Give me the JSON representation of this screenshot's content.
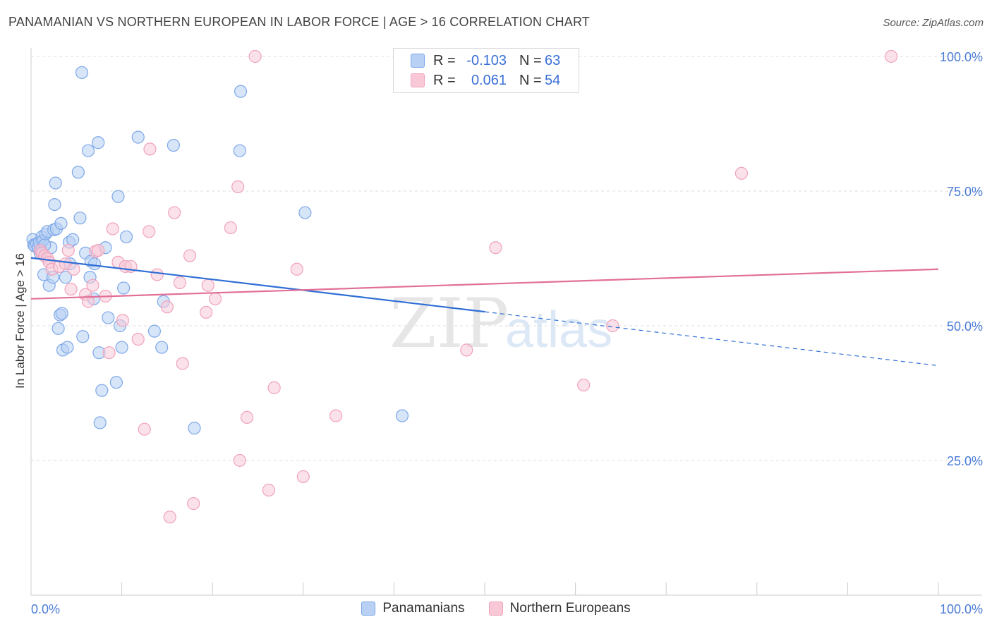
{
  "title": "PANAMANIAN VS NORTHERN EUROPEAN IN LABOR FORCE | AGE > 16 CORRELATION CHART",
  "source": "Source: ZipAtlas.com",
  "watermark": {
    "zip": "ZIP",
    "atlas": "atlas"
  },
  "legend": {
    "r_label": "R =",
    "n_label": "N =",
    "rows": [
      {
        "r": "-0.103",
        "n": "63"
      },
      {
        "r": "0.061",
        "n": "54"
      }
    ]
  },
  "chart_data": {
    "type": "scatter",
    "title": "PANAMANIAN VS NORTHERN EUROPEAN IN LABOR FORCE | AGE > 16 CORRELATION CHART",
    "ylabel": "In Labor Force | Age > 16",
    "xlabel": "",
    "xlim": [
      0,
      100
    ],
    "ylim": [
      0,
      100
    ],
    "x_ticks": [
      "0.0%",
      "100.0%"
    ],
    "y_ticks": [
      "25.0%",
      "50.0%",
      "75.0%",
      "100.0%"
    ],
    "y_tick_values": [
      25,
      50,
      75,
      100
    ],
    "grid": true,
    "legend_position": "top-center",
    "series": [
      {
        "name": "Panamanians",
        "color": "#7ea8e8",
        "fill": "#b7d0f4",
        "line_color": "#2f6fd6",
        "r": -0.103,
        "n": 63,
        "trend": {
          "x0": 0,
          "y0": 62.6,
          "x1": 50,
          "y1": 52.6,
          "dash_to_x": 100,
          "dash_to_y": 42.6
        },
        "points": [
          [
            0.2,
            66
          ],
          [
            0.3,
            65
          ],
          [
            0.4,
            64.8
          ],
          [
            0.6,
            65.2
          ],
          [
            0.8,
            64.5
          ],
          [
            0.9,
            65.5
          ],
          [
            1.0,
            63.5
          ],
          [
            1.1,
            64.0
          ],
          [
            1.2,
            66.5
          ],
          [
            1.3,
            65.8
          ],
          [
            1.4,
            59.5
          ],
          [
            1.6,
            67
          ],
          [
            1.8,
            67.5
          ],
          [
            2.0,
            57.5
          ],
          [
            2.2,
            64.5
          ],
          [
            2.4,
            59
          ],
          [
            2.5,
            67.8
          ],
          [
            2.6,
            72.5
          ],
          [
            2.7,
            76.5
          ],
          [
            2.8,
            68
          ],
          [
            3.0,
            49.5
          ],
          [
            3.2,
            52
          ],
          [
            3.3,
            69
          ],
          [
            3.4,
            52.3
          ],
          [
            3.5,
            45.5
          ],
          [
            3.8,
            59
          ],
          [
            4.0,
            46
          ],
          [
            4.2,
            65.5
          ],
          [
            4.3,
            61.5
          ],
          [
            4.6,
            66
          ],
          [
            5.2,
            78.5
          ],
          [
            5.4,
            70
          ],
          [
            5.6,
            97
          ],
          [
            5.7,
            48
          ],
          [
            6.0,
            63.5
          ],
          [
            6.3,
            82.5
          ],
          [
            6.5,
            59
          ],
          [
            6.6,
            62
          ],
          [
            6.9,
            55
          ],
          [
            7.0,
            61.5
          ],
          [
            7.4,
            84
          ],
          [
            7.5,
            45
          ],
          [
            7.6,
            32
          ],
          [
            7.8,
            38
          ],
          [
            8.2,
            64.5
          ],
          [
            8.5,
            51.5
          ],
          [
            9.4,
            39.5
          ],
          [
            9.6,
            74
          ],
          [
            9.8,
            50
          ],
          [
            10.0,
            46
          ],
          [
            10.2,
            57
          ],
          [
            10.5,
            66.5
          ],
          [
            11.8,
            85
          ],
          [
            13.6,
            49
          ],
          [
            14.4,
            46
          ],
          [
            14.6,
            54.5
          ],
          [
            15.7,
            83.5
          ],
          [
            18.0,
            31
          ],
          [
            23.1,
            93.5
          ],
          [
            23.0,
            82.5
          ],
          [
            30.2,
            71
          ],
          [
            40.9,
            33.3
          ],
          [
            1.5,
            65.0
          ]
        ]
      },
      {
        "name": "Northern Europeans",
        "color": "#f0a3bc",
        "fill": "#f8c8d7",
        "line_color": "#e26f98",
        "r": 0.061,
        "n": 54,
        "trend": {
          "x0": 0,
          "y0": 55,
          "x1": 100,
          "y1": 60.5
        },
        "points": [
          [
            1.0,
            64
          ],
          [
            1.2,
            63.5
          ],
          [
            1.5,
            63
          ],
          [
            1.8,
            62.5
          ],
          [
            2.0,
            61.8
          ],
          [
            2.3,
            60.5
          ],
          [
            3.1,
            61
          ],
          [
            3.8,
            61.5
          ],
          [
            4.1,
            64
          ],
          [
            4.4,
            56.8
          ],
          [
            4.7,
            60.5
          ],
          [
            6.0,
            55.8
          ],
          [
            6.3,
            54.5
          ],
          [
            6.8,
            57.5
          ],
          [
            7.1,
            63.8
          ],
          [
            7.4,
            64
          ],
          [
            8.2,
            55.5
          ],
          [
            8.6,
            45
          ],
          [
            9.0,
            68
          ],
          [
            9.6,
            61.8
          ],
          [
            10.1,
            51
          ],
          [
            10.4,
            61
          ],
          [
            11.0,
            61
          ],
          [
            11.8,
            47.5
          ],
          [
            12.5,
            30.8
          ],
          [
            13.0,
            67.5
          ],
          [
            13.1,
            82.8
          ],
          [
            13.9,
            59.5
          ],
          [
            15.0,
            53.5
          ],
          [
            15.3,
            14.5
          ],
          [
            15.8,
            71
          ],
          [
            16.4,
            58
          ],
          [
            16.7,
            43
          ],
          [
            17.5,
            63
          ],
          [
            17.9,
            17
          ],
          [
            19.3,
            52.5
          ],
          [
            20.3,
            55
          ],
          [
            22.0,
            68.2
          ],
          [
            22.8,
            75.8
          ],
          [
            23.0,
            25
          ],
          [
            23.8,
            33
          ],
          [
            24.7,
            100
          ],
          [
            26.2,
            19.5
          ],
          [
            26.8,
            38.5
          ],
          [
            29.3,
            60.5
          ],
          [
            30.0,
            22
          ],
          [
            33.6,
            33.3
          ],
          [
            48.0,
            45.5
          ],
          [
            51.2,
            64.5
          ],
          [
            60.9,
            39
          ],
          [
            64.1,
            50
          ],
          [
            78.3,
            78.3
          ],
          [
            94.8,
            100
          ],
          [
            19.5,
            57.5
          ]
        ]
      }
    ]
  }
}
